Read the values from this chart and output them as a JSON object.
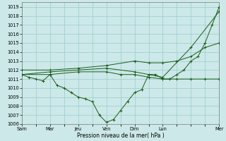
{
  "xlabel": "Pression niveau de la mer( hPa )",
  "ylim": [
    1006,
    1019.5
  ],
  "xlim": [
    0,
    14
  ],
  "yticks": [
    1006,
    1007,
    1008,
    1009,
    1010,
    1011,
    1012,
    1013,
    1014,
    1015,
    1016,
    1017,
    1018,
    1019
  ],
  "xtick_labels": [
    "Sam",
    "Mar",
    "Jeu",
    "Ven",
    "Dim",
    "Lun",
    "Mer"
  ],
  "xtick_positions": [
    0,
    2,
    4,
    6,
    8,
    10,
    14
  ],
  "bg_color": "#cce8e8",
  "grid_color": "#99cccc",
  "line_color": "#1a5c1a",
  "figsize": [
    3.2,
    2.0
  ],
  "dpi": 100,
  "lines": [
    {
      "x": [
        0.0,
        0.5,
        1.0,
        1.5,
        2.0,
        2.5,
        3.0,
        3.5,
        4.0,
        4.5,
        5.0,
        5.5,
        6.0,
        6.5,
        7.0,
        7.5,
        8.0,
        8.5,
        9.0,
        9.5,
        10.0,
        10.5,
        11.0,
        11.5,
        12.0,
        12.5,
        13.0,
        13.5,
        14.0
      ],
      "y": [
        1011.5,
        1011.2,
        1011.0,
        1010.8,
        1011.5,
        1010.3,
        1010.0,
        1009.5,
        1009.0,
        1008.8,
        1008.5,
        1007.0,
        1006.2,
        1006.5,
        1007.5,
        1008.5,
        1009.5,
        1009.8,
        1011.5,
        1011.5,
        1011.0,
        1011.0,
        1011.5,
        1012.0,
        1013.0,
        1013.5,
        1015.0,
        1017.0,
        1019.0
      ]
    },
    {
      "x": [
        0.0,
        2.0,
        4.0,
        6.0,
        8.0,
        10.0,
        12.0,
        14.0
      ],
      "y": [
        1011.5,
        1011.8,
        1012.0,
        1012.2,
        1011.8,
        1011.2,
        1014.5,
        1018.5
      ]
    },
    {
      "x": [
        0.0,
        2.0,
        4.0,
        6.0,
        8.0,
        9.0,
        10.0,
        11.0,
        12.0,
        13.0,
        14.0
      ],
      "y": [
        1012.0,
        1012.0,
        1012.2,
        1012.5,
        1013.0,
        1012.8,
        1012.8,
        1013.0,
        1013.5,
        1014.5,
        1015.0
      ]
    },
    {
      "x": [
        0.0,
        2.0,
        4.0,
        6.0,
        7.0,
        8.0,
        9.0,
        10.0,
        11.0,
        12.0,
        13.0,
        14.0
      ],
      "y": [
        1011.5,
        1011.5,
        1011.8,
        1011.8,
        1011.5,
        1011.5,
        1011.2,
        1011.0,
        1011.0,
        1011.0,
        1011.0,
        1011.0
      ]
    }
  ]
}
